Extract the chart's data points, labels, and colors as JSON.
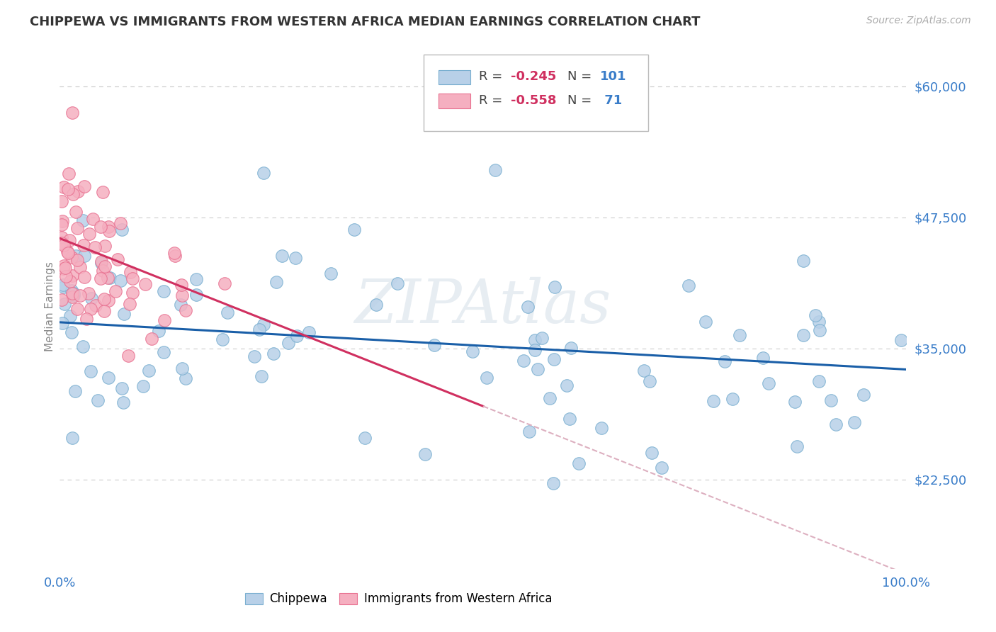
{
  "title": "CHIPPEWA VS IMMIGRANTS FROM WESTERN AFRICA MEDIAN EARNINGS CORRELATION CHART",
  "source": "Source: ZipAtlas.com",
  "ylabel": "Median Earnings",
  "xlim": [
    0.0,
    100.0
  ],
  "ylim": [
    14000,
    64000
  ],
  "yticks": [
    22500,
    35000,
    47500,
    60000
  ],
  "ytick_labels": [
    "$22,500",
    "$35,000",
    "$47,500",
    "$60,000"
  ],
  "xtick_positions": [
    0,
    10,
    20,
    30,
    40,
    50,
    60,
    70,
    80,
    90,
    100
  ],
  "xtick_labels": [
    "0.0%",
    "",
    "",
    "",
    "",
    "",
    "",
    "",
    "",
    "",
    "100.0%"
  ],
  "blue_color": "#b8d0e8",
  "blue_edge_color": "#7aafd0",
  "pink_color": "#f5afc0",
  "pink_edge_color": "#e87090",
  "line_blue_color": "#1a5fa8",
  "line_pink_color": "#d03060",
  "line_pink_dash_color": "#ddb0c0",
  "R_blue": -0.245,
  "N_blue": 101,
  "R_pink": -0.558,
  "N_pink": 71,
  "watermark": "ZIPAtlas",
  "background_color": "#ffffff",
  "grid_color": "#cccccc",
  "blue_intercept": 37500,
  "blue_slope": -45,
  "pink_intercept": 45500,
  "pink_slope": -320,
  "pink_solid_end": 50
}
